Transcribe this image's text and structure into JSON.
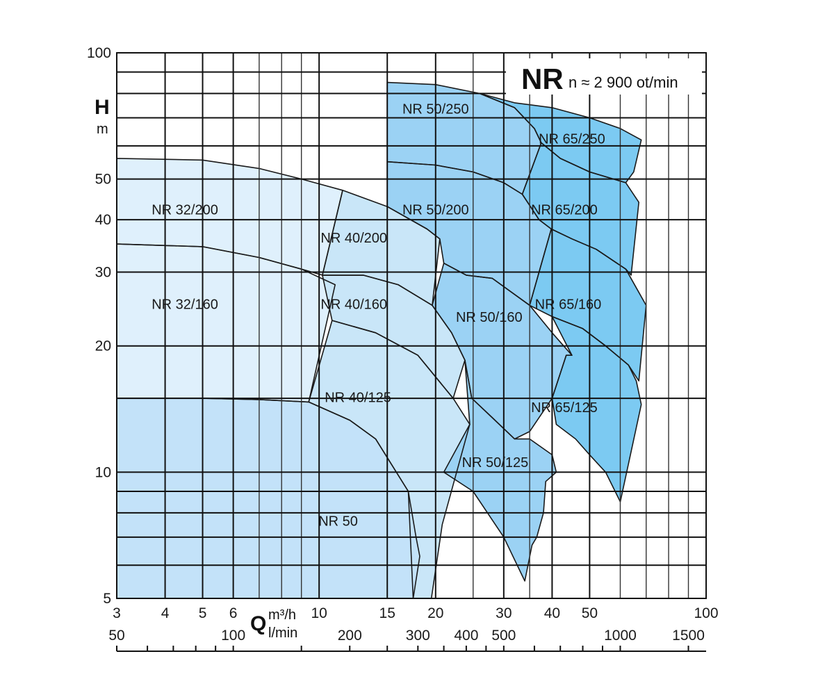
{
  "chart_data": {
    "type": "area",
    "title": "NR",
    "subtitle": "n ≈ 2 900 ot/min",
    "x_scale": "log",
    "y_scale": "log",
    "xlim": [
      3,
      100
    ],
    "ylim": [
      5,
      100
    ],
    "ylabel_symbol": "H",
    "ylabel_unit": "m",
    "xlabel_symbol": "Q",
    "xlabel_unit_primary": "m³/h",
    "xlabel_unit_secondary": "l/min",
    "y_ticks": [
      5,
      10,
      20,
      30,
      40,
      50,
      100
    ],
    "y_tick_labels": [
      "5",
      "10",
      "20",
      "30",
      "40",
      "50",
      "100"
    ],
    "x_ticks": [
      3,
      4,
      5,
      6,
      10,
      15,
      20,
      30,
      40,
      50,
      100
    ],
    "x_tick_labels": [
      "3",
      "4",
      "5",
      "6",
      "10",
      "15",
      "20",
      "30",
      "40",
      "50",
      "100"
    ],
    "x_secondary_ticks": [
      50,
      100,
      200,
      300,
      400,
      500,
      1000,
      1500
    ],
    "x_secondary_tick_labels": [
      "50",
      "100",
      "200",
      "300",
      "400",
      "500",
      "1000",
      "1500"
    ],
    "grid": true,
    "regions": [
      {
        "name": "NR 32/200",
        "color": "#dff0fc",
        "label_at": [
          4.5,
          42
        ],
        "points": [
          [
            3,
            56
          ],
          [
            5,
            55.5
          ],
          [
            7,
            53
          ],
          [
            9,
            50
          ],
          [
            11.5,
            47
          ],
          [
            10.2,
            29.5
          ],
          [
            9,
            30.5
          ],
          [
            7,
            32.5
          ],
          [
            5,
            34.5
          ],
          [
            3,
            35
          ]
        ]
      },
      {
        "name": "NR 32/160",
        "color": "#dff0fc",
        "label_at": [
          4.5,
          25
        ],
        "points": [
          [
            3,
            35
          ],
          [
            5,
            34.5
          ],
          [
            7,
            32.5
          ],
          [
            9,
            30.5
          ],
          [
            11,
            28
          ],
          [
            9.4,
            14.7
          ],
          [
            7,
            14.9
          ],
          [
            5,
            15
          ],
          [
            3,
            15
          ]
        ]
      },
      {
        "name": "NR 40/200",
        "color": "#c9e6f8",
        "label_at": [
          12.3,
          36
        ],
        "points": [
          [
            11.5,
            47
          ],
          [
            15,
            43
          ],
          [
            19,
            38
          ],
          [
            20.5,
            36
          ],
          [
            19.6,
            25
          ],
          [
            16,
            28
          ],
          [
            13,
            29.5
          ],
          [
            10.2,
            29.5
          ]
        ]
      },
      {
        "name": "NR 40/160",
        "color": "#c9e6f8",
        "label_at": [
          12.3,
          25
        ],
        "points": [
          [
            10.2,
            29.5
          ],
          [
            13,
            29.5
          ],
          [
            16,
            28
          ],
          [
            19.6,
            25
          ],
          [
            22,
            21.5
          ],
          [
            23.8,
            18.5
          ],
          [
            22.2,
            15
          ],
          [
            18,
            19
          ],
          [
            14,
            21.5
          ],
          [
            10.8,
            23
          ]
        ]
      },
      {
        "name": "NR 40/125",
        "color": "#c9e6f8",
        "label_at": [
          12.6,
          15
        ],
        "points": [
          [
            10.8,
            23
          ],
          [
            14,
            21.5
          ],
          [
            18,
            19
          ],
          [
            22.2,
            15
          ],
          [
            24.5,
            13
          ],
          [
            20.8,
            7.5
          ],
          [
            19.5,
            5
          ],
          [
            17.5,
            5
          ],
          [
            17,
            9
          ],
          [
            14,
            12
          ],
          [
            12,
            13.3
          ],
          [
            9.4,
            14.7
          ]
        ]
      },
      {
        "name": "NR 50",
        "color": "#c3e2f9",
        "label_at": [
          11.2,
          7.6
        ],
        "label_color": "#d94a4a",
        "points": [
          [
            3,
            15
          ],
          [
            5,
            15
          ],
          [
            7,
            14.9
          ],
          [
            9.4,
            14.7
          ],
          [
            12,
            13.3
          ],
          [
            14,
            12
          ],
          [
            17,
            9
          ],
          [
            17.8,
            7
          ],
          [
            18.2,
            6.3
          ],
          [
            17.5,
            5
          ],
          [
            3,
            5
          ]
        ]
      },
      {
        "name": "NR 50/250",
        "color": "#9bd2f4",
        "label_at": [
          20,
          73
        ],
        "points": [
          [
            15,
            85
          ],
          [
            20,
            84
          ],
          [
            26,
            80
          ],
          [
            32,
            74
          ],
          [
            36,
            66
          ],
          [
            37.5,
            61
          ],
          [
            33.5,
            46
          ],
          [
            30,
            49
          ],
          [
            25,
            52
          ],
          [
            20,
            54
          ],
          [
            15,
            55
          ]
        ]
      },
      {
        "name": "NR 50/200",
        "color": "#9bd2f4",
        "label_at": [
          20,
          42
        ],
        "points": [
          [
            15,
            55
          ],
          [
            20,
            54
          ],
          [
            25,
            52
          ],
          [
            30,
            49
          ],
          [
            33.5,
            46
          ],
          [
            37,
            40
          ],
          [
            39.8,
            38
          ],
          [
            35,
            25
          ],
          [
            28,
            29
          ],
          [
            24,
            29.5
          ],
          [
            21,
            31.5
          ],
          [
            20.5,
            36
          ],
          [
            19,
            38
          ],
          [
            15,
            43
          ]
        ]
      },
      {
        "name": "NR 50/160",
        "color": "#9bd2f4",
        "label_at": [
          27.5,
          23.3
        ],
        "points": [
          [
            21,
            31.5
          ],
          [
            24,
            29.5
          ],
          [
            28,
            29
          ],
          [
            35,
            25
          ],
          [
            40,
            21.5
          ],
          [
            45,
            19
          ],
          [
            43.5,
            19
          ],
          [
            40,
            15
          ],
          [
            35,
            12.5
          ],
          [
            32,
            12
          ],
          [
            24.8,
            15
          ],
          [
            23.8,
            18.5
          ],
          [
            22,
            21.5
          ],
          [
            19.6,
            25
          ]
        ]
      },
      {
        "name": "NR 50/125",
        "color": "#9bd2f4",
        "label_at": [
          28.5,
          10.5
        ],
        "points": [
          [
            23.8,
            18.5
          ],
          [
            24.8,
            15
          ],
          [
            28,
            13.5
          ],
          [
            32,
            12
          ],
          [
            35,
            12
          ],
          [
            40,
            11
          ],
          [
            41,
            10
          ],
          [
            38.5,
            9.5
          ],
          [
            38,
            8
          ],
          [
            36.5,
            7
          ],
          [
            35.5,
            6.7
          ],
          [
            34,
            5.5
          ],
          [
            30,
            7
          ],
          [
            25,
            9
          ],
          [
            21,
            10
          ],
          [
            24.5,
            13
          ]
        ]
      },
      {
        "name": "NR 65/250",
        "color": "#7ccaf2",
        "label_at": [
          45,
          62
        ],
        "points": [
          [
            26,
            80
          ],
          [
            32,
            76
          ],
          [
            40,
            74
          ],
          [
            50,
            70
          ],
          [
            60,
            66
          ],
          [
            68,
            62
          ],
          [
            65,
            52
          ],
          [
            62,
            49
          ],
          [
            50,
            52
          ],
          [
            42,
            56
          ],
          [
            37.5,
            61
          ],
          [
            36,
            66
          ],
          [
            32,
            74
          ]
        ]
      },
      {
        "name": "NR 65/200",
        "color": "#7ccaf2",
        "label_at": [
          43,
          42
        ],
        "points": [
          [
            37.5,
            61
          ],
          [
            42,
            56
          ],
          [
            50,
            52
          ],
          [
            62,
            49
          ],
          [
            67,
            44
          ],
          [
            64,
            29.5
          ],
          [
            62,
            30.5
          ],
          [
            52,
            34
          ],
          [
            45,
            36
          ],
          [
            39.8,
            38
          ],
          [
            37,
            40
          ],
          [
            33.5,
            46
          ]
        ]
      },
      {
        "name": "NR 65/160",
        "color": "#7ccaf2",
        "label_at": [
          44,
          25
        ],
        "points": [
          [
            39.8,
            38
          ],
          [
            45,
            36
          ],
          [
            52,
            34
          ],
          [
            62,
            30.5
          ],
          [
            70,
            25
          ],
          [
            67,
            16.5
          ],
          [
            63,
            18
          ],
          [
            55,
            20
          ],
          [
            48,
            22
          ],
          [
            40,
            23.5
          ],
          [
            35,
            25
          ]
        ]
      },
      {
        "name": "NR 65/125",
        "color": "#7ccaf2",
        "label_at": [
          43,
          14.2
        ],
        "points": [
          [
            40,
            23.5
          ],
          [
            48,
            22
          ],
          [
            55,
            20
          ],
          [
            63,
            18
          ],
          [
            66,
            16.5
          ],
          [
            68,
            14.5
          ],
          [
            60,
            8.5
          ],
          [
            55,
            10
          ],
          [
            50,
            11
          ],
          [
            46,
            12
          ],
          [
            41,
            13
          ],
          [
            40,
            15
          ],
          [
            43.5,
            19
          ],
          [
            45,
            19
          ]
        ]
      }
    ]
  }
}
